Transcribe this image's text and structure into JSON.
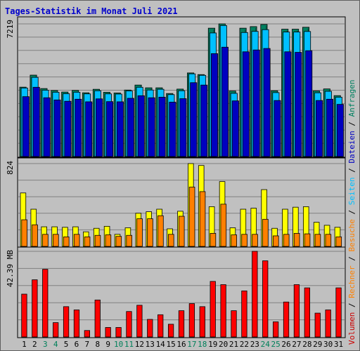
{
  "title": "Tages-Statistik im Monat Juli 2021",
  "chart_data": {
    "type": "bar",
    "categories": [
      "1",
      "2",
      "3",
      "4",
      "5",
      "6",
      "7",
      "8",
      "9",
      "10",
      "11",
      "12",
      "13",
      "14",
      "15",
      "16",
      "17",
      "18",
      "19",
      "20",
      "21",
      "22",
      "23",
      "24",
      "25",
      "26",
      "27",
      "28",
      "29",
      "30",
      "31"
    ],
    "weekend_days": [
      "3",
      "4",
      "10",
      "11",
      "17",
      "18",
      "24",
      "25"
    ],
    "panels": [
      {
        "name": "requests",
        "max_label": "7219",
        "ylim": [
          0,
          7219
        ],
        "series": [
          {
            "name": "Anfragen",
            "color": "#008060",
            "values": [
              3776,
              4430,
              3700,
              3595,
              3510,
              3600,
              3470,
              3660,
              3500,
              3460,
              3620,
              3890,
              3740,
              3740,
              3430,
              3670,
              4550,
              4460,
              6985,
              7219,
              3565,
              6985,
              7070,
              7185,
              3580,
              6930,
              6930,
              7035,
              3570,
              3680,
              3315
            ]
          },
          {
            "name": "Seiten",
            "color": "#00c0ff",
            "values": [
              3730,
              4310,
              3610,
              3500,
              3420,
              3500,
              3410,
              3580,
              3410,
              3400,
              3570,
              3770,
              3620,
              3660,
              3370,
              3580,
              4500,
              4420,
              6725,
              7130,
              3440,
              6750,
              6810,
              6905,
              3480,
              6775,
              6775,
              6805,
              3470,
              3550,
              3230
            ]
          },
          {
            "name": "Dateien",
            "color": "#0000c0",
            "values": [
              3260,
              3770,
              3200,
              3080,
              3010,
              3120,
              2980,
              3140,
              2990,
              2980,
              3170,
              3310,
              3200,
              3230,
              2960,
              3150,
              4020,
              3890,
              5600,
              5950,
              3030,
              5700,
              5800,
              5880,
              3050,
              5700,
              5670,
              5760,
              3050,
              3120,
              2840
            ]
          }
        ]
      },
      {
        "name": "visits",
        "max_label": "824",
        "ylim": [
          0,
          824
        ],
        "series": [
          {
            "name": "Besuche",
            "color": "#ffff00",
            "values": [
              532,
              370,
              195,
              195,
              190,
              195,
              145,
              180,
              200,
              120,
              185,
              330,
              345,
              370,
              175,
              350,
              824,
              805,
              395,
              645,
              185,
              370,
              380,
              565,
              180,
              370,
              390,
              395,
              240,
              210,
              190
            ]
          },
          {
            "name": "Rechner",
            "color": "#ff8000",
            "values": [
              265,
              215,
              120,
              120,
              95,
              120,
              95,
              110,
              115,
              100,
              110,
              275,
              275,
              305,
              120,
              300,
              590,
              545,
              130,
              420,
              115,
              120,
              120,
              270,
              105,
              120,
              130,
              125,
              120,
              120,
              95
            ]
          }
        ]
      },
      {
        "name": "volume",
        "max_label": "42.39 MB",
        "ylim": [
          0,
          42.39
        ],
        "series": [
          {
            "name": "Volumen",
            "color": "#ff0000",
            "values": [
              21.2,
              28.3,
              33.5,
              7.1,
              15.0,
              13.4,
              3.2,
              18.3,
              4.7,
              4.7,
              12.6,
              15.7,
              8.7,
              11.0,
              6.3,
              13.0,
              16.5,
              15.0,
              27.5,
              25.9,
              13.0,
              22.8,
              42.39,
              37.7,
              7.5,
              17.3,
              25.9,
              24.3,
              11.8,
              13.4,
              24.3
            ]
          }
        ]
      }
    ],
    "right_legend": {
      "lower": [
        {
          "text": "Volumen",
          "color": "#cc0000"
        },
        {
          "text": " / ",
          "color": "#000000"
        },
        {
          "text": "Rechner",
          "color": "#ff8000"
        },
        {
          "text": " / ",
          "color": "#000000"
        },
        {
          "text": "Besuche",
          "color": "#ff8000"
        }
      ],
      "upper": [
        {
          "text": " / ",
          "color": "#000000"
        },
        {
          "text": "Seiten",
          "color": "#00c0ff"
        },
        {
          "text": " / ",
          "color": "#000000"
        },
        {
          "text": "Dateien",
          "color": "#0000c0"
        },
        {
          "text": " / ",
          "color": "#000000"
        },
        {
          "text": "Anfragen",
          "color": "#008060"
        }
      ]
    },
    "axis_label_color": "#000000",
    "weekend_label_color": "#00805a"
  }
}
